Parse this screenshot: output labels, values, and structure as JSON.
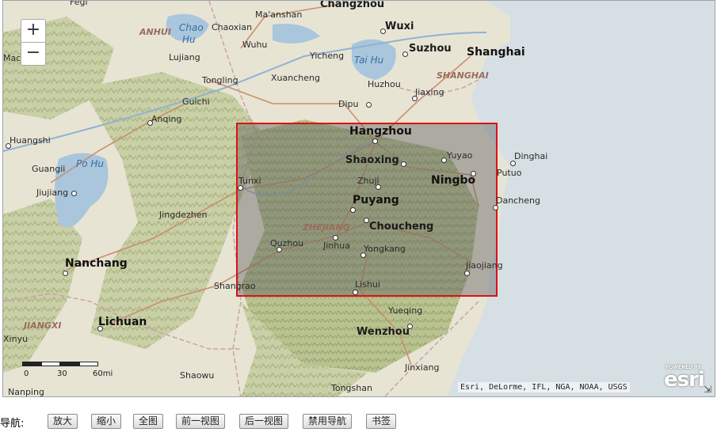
{
  "map": {
    "zoom_in_label": "+",
    "zoom_out_label": "−",
    "attribution": "Esri, DeLorme, IFL, NGA, NOAA, USGS",
    "esri_powered": "POWERED BY",
    "esri_logo": "esri",
    "scale_labels": [
      "0",
      "30",
      "60mi"
    ],
    "extent_color": "#e01010",
    "water_labels": [
      "Chao",
      "Hu",
      "Tai Hu",
      "Po Hu"
    ],
    "province_labels": [
      "ANHUI",
      "SHANGHAI",
      "ZHEJIANG",
      "JIANGXI"
    ],
    "cities": [
      "Fegi",
      "Changzhou",
      "Ma'anshan",
      "Wuxi",
      "Chaoxian",
      "Suzhou",
      "Shanghai",
      "Wuhu",
      "Yicheng",
      "Lujiang",
      "Mac",
      "Tongling",
      "Xuancheng",
      "Huzhou",
      "Jiaxing",
      "Guichi",
      "Dipu",
      "Anqing",
      "Hangzhou",
      "Huangshi",
      "Yuyao",
      "Dinghai",
      "Shaoxing",
      "Guangii",
      "Ningbo",
      "Putuo",
      "Tunxi",
      "Zhuji",
      "Jiujiang",
      "Dancheng",
      "Puyang",
      "Jingdezhen",
      "Choucheng",
      "Quzhou",
      "Jinhua",
      "Nanchang",
      "Yongkang",
      "Jiaojiang",
      "Shangrao",
      "Lishui",
      "Yueqing",
      "Lichuan",
      "Wenzhou",
      "Xinyu",
      "Jinxiang",
      "Shaowu",
      "Tongshan",
      "Nanping"
    ]
  },
  "nav": {
    "label": "导航:",
    "buttons": [
      "放大",
      "缩小",
      "全图",
      "前一视图",
      "后一视图",
      "禁用导航",
      "书签"
    ]
  }
}
